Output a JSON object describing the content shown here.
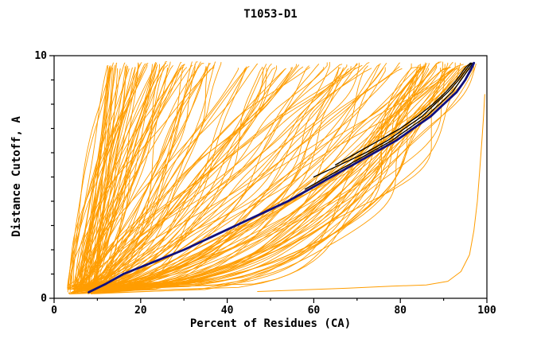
{
  "chart_data": {
    "type": "line",
    "title": "T1053-D1",
    "xlabel": "Percent of Residues (CA)",
    "ylabel": "Distance Cutoff, A",
    "xlim": [
      0,
      100
    ],
    "ylim": [
      0,
      10
    ],
    "x_major_ticks": [
      0,
      20,
      40,
      60,
      80,
      100
    ],
    "x_minor_step": 10,
    "y_tick_step": 1,
    "y_labeled_ticks": [
      0,
      10
    ],
    "grid": false,
    "legend": "none",
    "colors": {
      "ensemble_orange": "#ff9d00",
      "highlight_blue": "#10107e",
      "dark_black": "#000000",
      "axis": "#000000",
      "background": "#ffffff"
    },
    "series": [
      {
        "name": "highlight-model-blue",
        "color": "#10107e",
        "width": 2.8,
        "points": [
          [
            8,
            0.25
          ],
          [
            12,
            0.6
          ],
          [
            16,
            1.0
          ],
          [
            23,
            1.5
          ],
          [
            30,
            2.0
          ],
          [
            36,
            2.5
          ],
          [
            42,
            3.0
          ],
          [
            48,
            3.5
          ],
          [
            54,
            4.0
          ],
          [
            59,
            4.5
          ],
          [
            64,
            5.0
          ],
          [
            69,
            5.5
          ],
          [
            74,
            6.0
          ],
          [
            79,
            6.5
          ],
          [
            83,
            7.0
          ],
          [
            87,
            7.5
          ],
          [
            90,
            8.0
          ],
          [
            93,
            8.5
          ],
          [
            95,
            9.0
          ],
          [
            96.5,
            9.5
          ],
          [
            97,
            9.7
          ]
        ]
      },
      {
        "name": "dark-model-1",
        "color": "#000000",
        "width": 1.3,
        "points": [
          [
            60,
            5.0
          ],
          [
            66,
            5.5
          ],
          [
            72,
            6.0
          ],
          [
            77,
            6.5
          ],
          [
            81,
            7.0
          ],
          [
            85,
            7.5
          ],
          [
            88,
            8.0
          ],
          [
            91,
            8.5
          ],
          [
            93.5,
            9.0
          ],
          [
            95.5,
            9.5
          ],
          [
            96.5,
            9.7
          ]
        ]
      },
      {
        "name": "dark-model-2",
        "color": "#000000",
        "width": 1.3,
        "points": [
          [
            58,
            4.5
          ],
          [
            63,
            5.0
          ],
          [
            68,
            5.5
          ],
          [
            73,
            6.0
          ],
          [
            78,
            6.5
          ],
          [
            82,
            7.0
          ],
          [
            86,
            7.5
          ],
          [
            89,
            8.0
          ],
          [
            92,
            8.5
          ],
          [
            94,
            9.0
          ],
          [
            96,
            9.5
          ],
          [
            96.8,
            9.7
          ]
        ]
      },
      {
        "name": "dark-model-3",
        "color": "#000000",
        "width": 1.3,
        "points": [
          [
            65,
            5.5
          ],
          [
            70,
            6.0
          ],
          [
            75,
            6.5
          ],
          [
            80,
            7.0
          ],
          [
            84,
            7.5
          ],
          [
            87.5,
            8.0
          ],
          [
            90.5,
            8.5
          ],
          [
            93,
            9.0
          ],
          [
            95,
            9.5
          ],
          [
            96.2,
            9.7
          ]
        ]
      },
      {
        "name": "outlier-model-orange",
        "color": "#ff9d00",
        "width": 1.0,
        "points": [
          [
            47,
            0.28
          ],
          [
            58,
            0.35
          ],
          [
            68,
            0.42
          ],
          [
            78,
            0.5
          ],
          [
            86,
            0.55
          ],
          [
            91,
            0.7
          ],
          [
            94,
            1.1
          ],
          [
            96,
            1.8
          ],
          [
            97,
            2.8
          ],
          [
            97.8,
            4.0
          ],
          [
            98.3,
            5.2
          ],
          [
            98.8,
            6.4
          ],
          [
            99.2,
            7.4
          ],
          [
            99.5,
            8.4
          ]
        ]
      }
    ],
    "ensemble": {
      "description": "fan of prediction-model GDT curves",
      "color": "#ff9d00",
      "count": 170,
      "seed": 1337,
      "start_percent_range": [
        3,
        10
      ],
      "end_percent_range": [
        12,
        97
      ],
      "cutoff_range": [
        0.2,
        9.7
      ]
    }
  }
}
